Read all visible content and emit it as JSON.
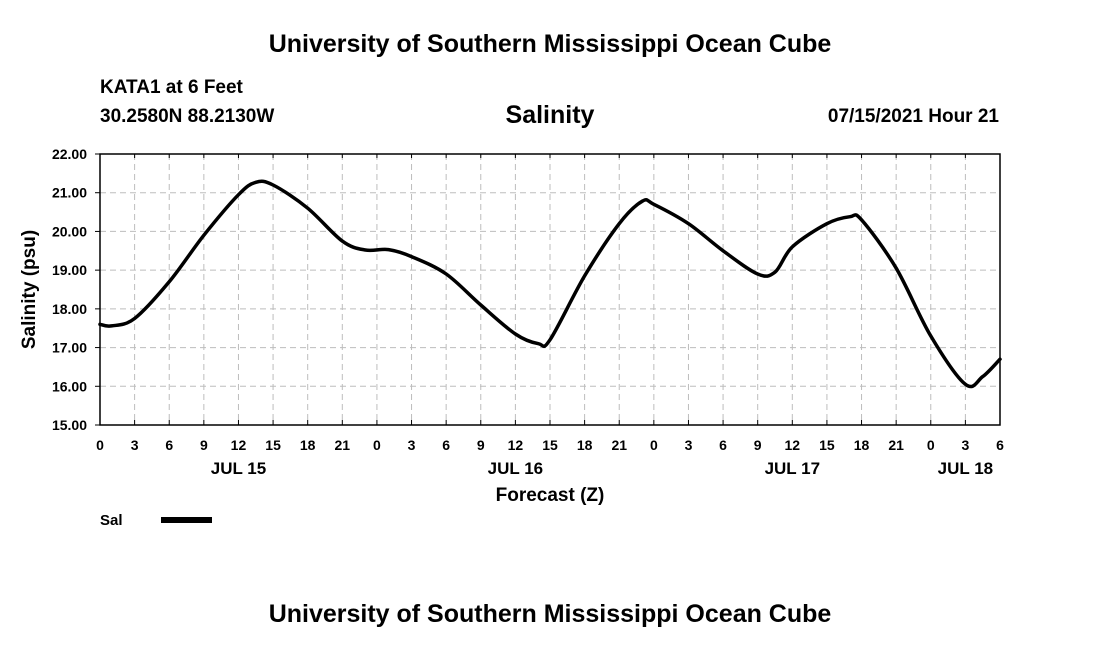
{
  "header": {
    "title": "University of Southern Mississippi Ocean Cube",
    "station": "KATA1 at 6 Feet",
    "coords": "30.2580N  88.2130W",
    "variable": "Salinity",
    "run_time": "07/15/2021 Hour 21"
  },
  "footer": {
    "title": "University of Southern Mississippi Ocean Cube"
  },
  "chart_data": {
    "type": "line",
    "title": "Salinity",
    "xlabel": "Forecast (Z)",
    "ylabel": "Salinity (psu)",
    "ylim": [
      15,
      22
    ],
    "xlim": [
      0,
      78
    ],
    "grid": true,
    "y_ticks": [
      "15.00",
      "16.00",
      "17.00",
      "18.00",
      "19.00",
      "20.00",
      "21.00",
      "22.00"
    ],
    "x_tick_hours": [
      0,
      3,
      6,
      9,
      12,
      15,
      18,
      21,
      24,
      27,
      30,
      33,
      36,
      39,
      42,
      45,
      48,
      51,
      54,
      57,
      60,
      63,
      66,
      69,
      72,
      75,
      78
    ],
    "x_tick_labels": [
      "0",
      "3",
      "6",
      "9",
      "12",
      "15",
      "18",
      "21",
      "0",
      "3",
      "6",
      "9",
      "12",
      "15",
      "18",
      "21",
      "0",
      "3",
      "6",
      "9",
      "12",
      "15",
      "18",
      "21",
      "0",
      "3",
      "6"
    ],
    "date_labels": [
      {
        "hour": 12,
        "label": "JUL 15"
      },
      {
        "hour": 36,
        "label": "JUL 16"
      },
      {
        "hour": 60,
        "label": "JUL 17"
      },
      {
        "hour": 75,
        "label": "JUL 18"
      }
    ],
    "legend": "bottom-left",
    "series": [
      {
        "name": "Sal",
        "x": [
          0,
          1,
          3,
          6,
          9,
          12,
          13.5,
          15,
          18,
          21,
          23,
          25,
          27,
          30,
          33,
          36,
          38,
          39,
          42,
          45,
          47,
          48,
          51,
          54,
          57,
          58.5,
          60,
          63,
          65,
          66,
          69,
          72,
          75,
          76.5,
          78
        ],
        "values": [
          17.6,
          17.56,
          17.75,
          18.7,
          19.9,
          20.95,
          21.27,
          21.2,
          20.6,
          19.75,
          19.52,
          19.53,
          19.35,
          18.9,
          18.1,
          17.35,
          17.1,
          17.2,
          18.85,
          20.2,
          20.78,
          20.7,
          20.2,
          19.5,
          18.9,
          18.95,
          19.6,
          20.2,
          20.38,
          20.3,
          19.05,
          17.3,
          16.05,
          16.25,
          16.7
        ]
      }
    ]
  }
}
